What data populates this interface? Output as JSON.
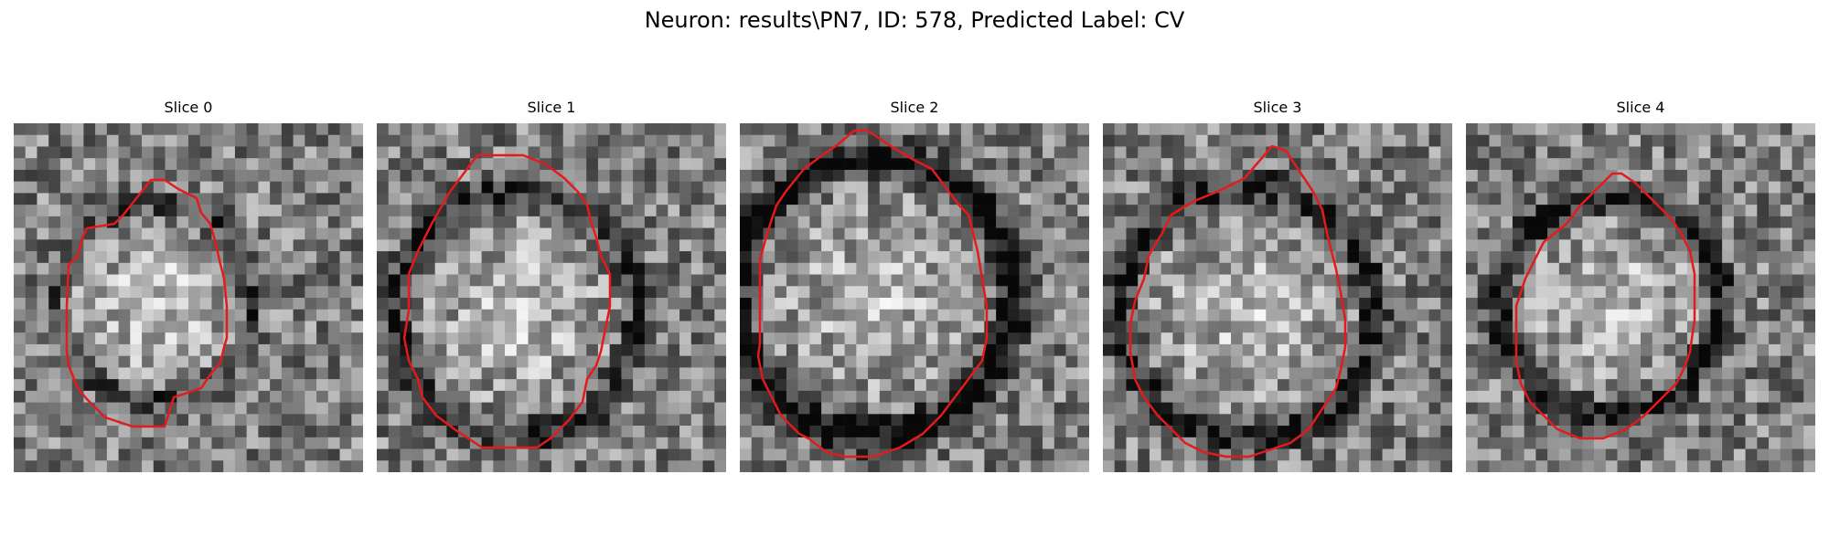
{
  "figure": {
    "title": "Neuron: results\\PN7, ID: 578, Predicted Label: CV"
  },
  "slices": [
    {
      "label": "Slice 0",
      "seed": 11,
      "shape": "ring",
      "dark_rim": 0.25,
      "bright_center": 0.35
    },
    {
      "label": "Slice 1",
      "seed": 27,
      "shape": "ring",
      "dark_rim": 0.35,
      "bright_center": 0.3
    },
    {
      "label": "Slice 2",
      "seed": 43,
      "shape": "ring",
      "dark_rim": 0.55,
      "bright_center": 0.25
    },
    {
      "label": "Slice 3",
      "seed": 59,
      "shape": "ring",
      "dark_rim": 0.35,
      "bright_center": 0.3
    },
    {
      "label": "Slice 4",
      "seed": 71,
      "shape": "ring",
      "dark_rim": 0.45,
      "bright_center": 0.3
    }
  ],
  "contour_color": "#e41a1c"
}
